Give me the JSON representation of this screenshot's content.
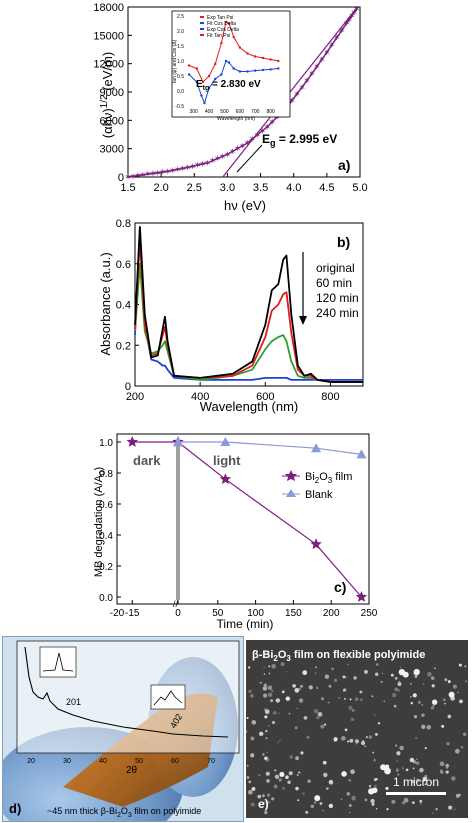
{
  "panel_a": {
    "letter": "a)",
    "ylabel": "(αhν)1/2 (eV/m)",
    "xlabel": "hν (eV)",
    "annotation": "Eg = 2.995 eV",
    "inset": {
      "ylabel": "Tan (ψ) and Cos (Δ)",
      "xlabel": "Wavelength (nm)",
      "annotation": "Eg = 2.830 eV",
      "legend": [
        "Exp Tan Psi",
        "Fit Cos Delta",
        "Exp Cos Delta",
        "Fit Tan Psi"
      ]
    }
  },
  "panel_b": {
    "letter": "b)",
    "ylabel": "Absorbance (a.u.)",
    "xlabel": "Wavelength (nm)",
    "labels": [
      "original",
      "60 min",
      "120 min",
      "240 min"
    ]
  },
  "panel_c": {
    "letter": "c)",
    "ylabel": "MB degradation (A/A0)",
    "xlabel": "Time (min)",
    "dark_label": "dark",
    "light_label": "light",
    "legend": [
      "Bi2O3 film",
      "Blank"
    ]
  },
  "panel_d": {
    "letter": "d)",
    "caption": "~45 nm thick β-Bi2O3 film on polyimide",
    "peak1": "201",
    "peak2": "402",
    "xlabel": "2θ",
    "xticks": [
      "20",
      "30",
      "40",
      "50",
      "60",
      "70"
    ]
  },
  "panel_e": {
    "letter": "e)",
    "title": "β-Bi2O3 film on flexible polyimide",
    "scale_label": "1 micron"
  },
  "chart_data": [
    {
      "type": "line",
      "panel": "a",
      "xlim": [
        1.5,
        5.0
      ],
      "ylim": [
        0,
        18000
      ],
      "xticks": [
        1.5,
        2.0,
        2.5,
        3.0,
        3.5,
        4.0,
        4.5,
        5.0
      ],
      "yticks": [
        0,
        3000,
        6000,
        9000,
        12000,
        15000,
        18000
      ],
      "series": [
        {
          "name": "",
          "x": [
            1.5,
            1.8,
            2.1,
            2.4,
            2.7,
            3.0,
            3.3,
            3.6,
            3.9,
            4.2,
            4.5,
            4.8,
            4.95
          ],
          "y": [
            0,
            300,
            600,
            1000,
            1500,
            2400,
            3600,
            5300,
            7400,
            10200,
            13200,
            16300,
            17800
          ]
        },
        {
          "name": "fit",
          "x": [
            2.93,
            4.95
          ],
          "y": [
            0,
            17900
          ]
        }
      ],
      "color": "#7b1f7e"
    },
    {
      "type": "line",
      "panel": "a-inset",
      "xlim": [
        250,
        900
      ],
      "ylim": [
        -0.5,
        2.5
      ],
      "xticks": [
        300,
        400,
        500,
        600,
        700,
        800
      ],
      "yticks": [
        -0.5,
        0.0,
        0.5,
        1.0,
        1.5,
        2.0,
        2.5
      ],
      "series": [
        {
          "name": "Exp Tan Psi",
          "x": [
            270,
            320,
            360,
            400,
            440,
            480,
            510,
            530,
            560,
            600,
            650,
            700,
            750,
            800,
            850
          ],
          "y": [
            0.85,
            0.75,
            0.3,
            0.5,
            0.9,
            1.6,
            2.3,
            2.25,
            1.8,
            1.45,
            1.25,
            1.15,
            1.1,
            1.05,
            1.0
          ]
        },
        {
          "name": "Exp Cos Delta",
          "x": [
            270,
            320,
            350,
            370,
            400,
            440,
            480,
            510,
            530,
            560,
            600,
            650,
            700,
            750,
            800,
            850
          ],
          "y": [
            0.55,
            0.3,
            -0.15,
            -0.4,
            0.1,
            0.4,
            0.55,
            1.0,
            0.95,
            0.75,
            0.65,
            0.65,
            0.68,
            0.7,
            0.72,
            0.75
          ]
        }
      ]
    },
    {
      "type": "line",
      "panel": "b",
      "xlim": [
        200,
        900
      ],
      "ylim": [
        0,
        0.8
      ],
      "xticks": [
        200,
        400,
        600,
        800
      ],
      "yticks": [
        0,
        0.2,
        0.4,
        0.6,
        0.8
      ],
      "x": [
        200,
        215,
        230,
        250,
        270,
        285,
        292,
        300,
        320,
        400,
        500,
        560,
        600,
        620,
        640,
        655,
        665,
        680,
        700,
        720,
        740,
        760,
        800,
        900
      ],
      "series": [
        {
          "name": "original",
          "values": [
            0.3,
            0.78,
            0.35,
            0.14,
            0.15,
            0.28,
            0.34,
            0.22,
            0.05,
            0.04,
            0.06,
            0.12,
            0.3,
            0.47,
            0.5,
            0.62,
            0.64,
            0.35,
            0.1,
            0.05,
            0.06,
            0.03,
            0.02,
            0.02
          ]
        },
        {
          "name": "60 min",
          "values": [
            0.28,
            0.72,
            0.3,
            0.15,
            0.16,
            0.25,
            0.29,
            0.2,
            0.05,
            0.04,
            0.05,
            0.1,
            0.24,
            0.37,
            0.4,
            0.45,
            0.46,
            0.26,
            0.08,
            0.05,
            0.05,
            0.03,
            0.02,
            0.02
          ]
        },
        {
          "name": "120 min",
          "values": [
            0.27,
            0.6,
            0.27,
            0.16,
            0.17,
            0.2,
            0.22,
            0.17,
            0.05,
            0.03,
            0.05,
            0.08,
            0.18,
            0.22,
            0.24,
            0.25,
            0.22,
            0.12,
            0.05,
            0.04,
            0.04,
            0.03,
            0.02,
            0.02
          ]
        },
        {
          "name": "240 min",
          "values": [
            0.25,
            0.78,
            0.3,
            0.13,
            0.12,
            0.1,
            0.1,
            0.08,
            0.04,
            0.03,
            0.03,
            0.03,
            0.04,
            0.04,
            0.04,
            0.04,
            0.04,
            0.03,
            0.03,
            0.03,
            0.03,
            0.03,
            0.03,
            0.03
          ]
        }
      ],
      "colors": [
        "#000000",
        "#e41a1c",
        "#2ca02c",
        "#1f3fd6"
      ]
    },
    {
      "type": "line",
      "panel": "c",
      "xlim": [
        -20,
        250
      ],
      "ylim": [
        0,
        1.0
      ],
      "xticks": [
        -20,
        -15,
        0,
        50,
        100,
        150,
        200,
        250
      ],
      "yticks": [
        0.0,
        0.2,
        0.4,
        0.6,
        0.8,
        1.0
      ],
      "series": [
        {
          "name": "Bi2O3 film",
          "x": [
            -15,
            0,
            60,
            180,
            240
          ],
          "y": [
            1.0,
            1.0,
            0.76,
            0.34,
            0.0
          ],
          "color": "#7b1f7e",
          "marker": "star"
        },
        {
          "name": "Blank",
          "x": [
            0,
            60,
            180,
            240
          ],
          "y": [
            1.0,
            1.0,
            0.96,
            0.92
          ],
          "color": "#8a9ad6",
          "marker": "triangle"
        }
      ]
    }
  ]
}
